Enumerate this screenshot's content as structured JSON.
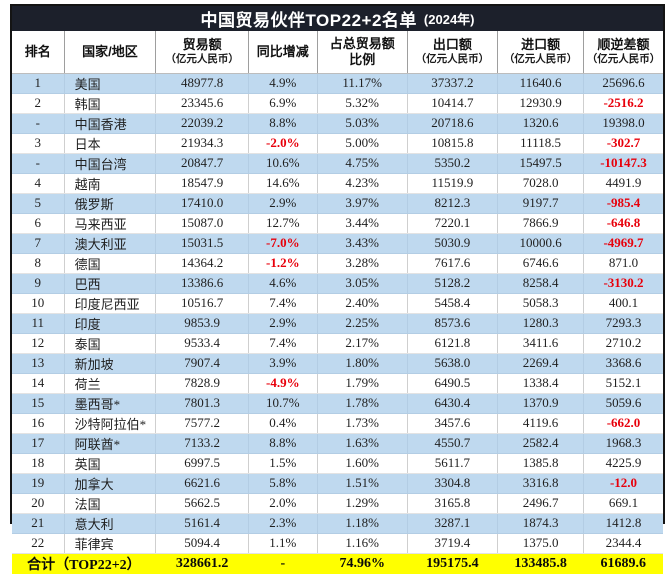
{
  "title": {
    "main": "中国贸易伙伴TOP22+2名单",
    "suffix": "(2024年)"
  },
  "columns": [
    {
      "line1": "排名"
    },
    {
      "line1": "国家/地区"
    },
    {
      "line1": "贸易额",
      "line2": "（亿元人民币）"
    },
    {
      "line1": "同比增减"
    },
    {
      "line1": "占总贸易额",
      "line2": "比例"
    },
    {
      "line1": "出口额",
      "line2": "（亿元人民币）"
    },
    {
      "line1": "进口额",
      "line2": "（亿元人民币）"
    },
    {
      "line1": "顺逆差额",
      "line2": "（亿元人民币）"
    }
  ],
  "rows": [
    {
      "rank": "1",
      "country": "美国",
      "trade": "48977.8",
      "yoy": "4.9%",
      "share": "11.17%",
      "exp": "37337.2",
      "imp": "11640.6",
      "balance": "25696.6"
    },
    {
      "rank": "2",
      "country": "韩国",
      "trade": "23345.6",
      "yoy": "6.9%",
      "share": "5.32%",
      "exp": "10414.7",
      "imp": "12930.9",
      "balance": "-2516.2"
    },
    {
      "rank": "-",
      "country": "中国香港",
      "trade": "22039.2",
      "yoy": "8.8%",
      "share": "5.03%",
      "exp": "20718.6",
      "imp": "1320.6",
      "balance": "19398.0"
    },
    {
      "rank": "3",
      "country": "日本",
      "trade": "21934.3",
      "yoy": "-2.0%",
      "share": "5.00%",
      "exp": "10815.8",
      "imp": "11118.5",
      "balance": "-302.7"
    },
    {
      "rank": "-",
      "country": "中国台湾",
      "trade": "20847.7",
      "yoy": "10.6%",
      "share": "4.75%",
      "exp": "5350.2",
      "imp": "15497.5",
      "balance": "-10147.3"
    },
    {
      "rank": "4",
      "country": "越南",
      "trade": "18547.9",
      "yoy": "14.6%",
      "share": "4.23%",
      "exp": "11519.9",
      "imp": "7028.0",
      "balance": "4491.9"
    },
    {
      "rank": "5",
      "country": "俄罗斯",
      "trade": "17410.0",
      "yoy": "2.9%",
      "share": "3.97%",
      "exp": "8212.3",
      "imp": "9197.7",
      "balance": "-985.4"
    },
    {
      "rank": "6",
      "country": "马来西亚",
      "trade": "15087.0",
      "yoy": "12.7%",
      "share": "3.44%",
      "exp": "7220.1",
      "imp": "7866.9",
      "balance": "-646.8"
    },
    {
      "rank": "7",
      "country": "澳大利亚",
      "trade": "15031.5",
      "yoy": "-7.0%",
      "share": "3.43%",
      "exp": "5030.9",
      "imp": "10000.6",
      "balance": "-4969.7"
    },
    {
      "rank": "8",
      "country": "德国",
      "trade": "14364.2",
      "yoy": "-1.2%",
      "share": "3.28%",
      "exp": "7617.6",
      "imp": "6746.6",
      "balance": "871.0"
    },
    {
      "rank": "9",
      "country": "巴西",
      "trade": "13386.6",
      "yoy": "4.6%",
      "share": "3.05%",
      "exp": "5128.2",
      "imp": "8258.4",
      "balance": "-3130.2"
    },
    {
      "rank": "10",
      "country": "印度尼西亚",
      "trade": "10516.7",
      "yoy": "7.4%",
      "share": "2.40%",
      "exp": "5458.4",
      "imp": "5058.3",
      "balance": "400.1"
    },
    {
      "rank": "11",
      "country": "印度",
      "trade": "9853.9",
      "yoy": "2.9%",
      "share": "2.25%",
      "exp": "8573.6",
      "imp": "1280.3",
      "balance": "7293.3"
    },
    {
      "rank": "12",
      "country": "泰国",
      "trade": "9533.4",
      "yoy": "7.4%",
      "share": "2.17%",
      "exp": "6121.8",
      "imp": "3411.6",
      "balance": "2710.2"
    },
    {
      "rank": "13",
      "country": "新加坡",
      "trade": "7907.4",
      "yoy": "3.9%",
      "share": "1.80%",
      "exp": "5638.0",
      "imp": "2269.4",
      "balance": "3368.6"
    },
    {
      "rank": "14",
      "country": "荷兰",
      "trade": "7828.9",
      "yoy": "-4.9%",
      "share": "1.79%",
      "exp": "6490.5",
      "imp": "1338.4",
      "balance": "5152.1"
    },
    {
      "rank": "15",
      "country": "墨西哥*",
      "trade": "7801.3",
      "yoy": "10.7%",
      "share": "1.78%",
      "exp": "6430.4",
      "imp": "1370.9",
      "balance": "5059.6"
    },
    {
      "rank": "16",
      "country": "沙特阿拉伯*",
      "trade": "7577.2",
      "yoy": "0.4%",
      "share": "1.73%",
      "exp": "3457.6",
      "imp": "4119.6",
      "balance": "-662.0"
    },
    {
      "rank": "17",
      "country": "阿联酋*",
      "trade": "7133.2",
      "yoy": "8.8%",
      "share": "1.63%",
      "exp": "4550.7",
      "imp": "2582.4",
      "balance": "1968.3"
    },
    {
      "rank": "18",
      "country": "英国",
      "trade": "6997.5",
      "yoy": "1.5%",
      "share": "1.60%",
      "exp": "5611.7",
      "imp": "1385.8",
      "balance": "4225.9"
    },
    {
      "rank": "19",
      "country": "加拿大",
      "trade": "6621.6",
      "yoy": "5.8%",
      "share": "1.51%",
      "exp": "3304.8",
      "imp": "3316.8",
      "balance": "-12.0"
    },
    {
      "rank": "20",
      "country": "法国",
      "trade": "5662.5",
      "yoy": "2.0%",
      "share": "1.29%",
      "exp": "3165.8",
      "imp": "2496.7",
      "balance": "669.1"
    },
    {
      "rank": "21",
      "country": "意大利",
      "trade": "5161.4",
      "yoy": "2.3%",
      "share": "1.18%",
      "exp": "3287.1",
      "imp": "1874.3",
      "balance": "1412.8"
    },
    {
      "rank": "22",
      "country": "菲律宾",
      "trade": "5094.4",
      "yoy": "1.1%",
      "share": "1.16%",
      "exp": "3719.4",
      "imp": "1375.0",
      "balance": "2344.4"
    }
  ],
  "total": {
    "label": "合计（TOP22+2）",
    "trade": "328661.2",
    "yoy": "-",
    "share": "74.96%",
    "exp": "195175.4",
    "imp": "133485.8",
    "balance": "61689.6"
  },
  "colors": {
    "title_bar": "#1c202b",
    "stripe": "#bfd9ef",
    "total_bg": "#ffff00",
    "negative": "#e8000b"
  }
}
